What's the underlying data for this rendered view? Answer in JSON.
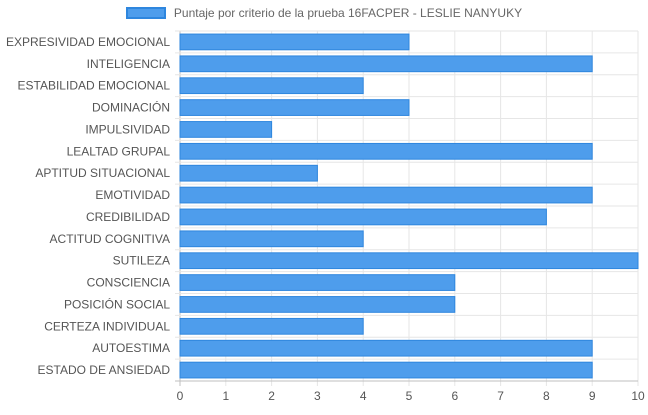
{
  "chart_data": {
    "type": "bar",
    "orientation": "horizontal",
    "title": "",
    "xlabel": "",
    "ylabel": "",
    "xlim": [
      0,
      10
    ],
    "x_ticks": [
      "0",
      "1",
      "2",
      "3",
      "4",
      "5",
      "6",
      "7",
      "8",
      "9",
      "10"
    ],
    "grid": true,
    "legend_position": "top-center",
    "categories": [
      "EXPRESIVIDAD EMOCIONAL",
      "INTELIGENCIA",
      "ESTABILIDAD EMOCIONAL",
      "DOMINACIÓN",
      "IMPULSIVIDAD",
      "LEALTAD GRUPAL",
      "APTITUD SITUACIONAL",
      "EMOTIVIDAD",
      "CREDIBILIDAD",
      "ACTITUD COGNITIVA",
      "SUTILEZA",
      "CONSCIENCIA",
      "POSICIÓN SOCIAL",
      "CERTEZA INDIVIDUAL",
      "AUTOESTIMA",
      "ESTADO DE ANSIEDAD"
    ],
    "series": [
      {
        "name": "Puntaje por criterio de la prueba 16FACPER - LESLIE NANYUKY",
        "values": [
          5,
          9,
          4,
          5,
          2,
          9,
          3,
          9,
          8,
          4,
          10,
          6,
          6,
          4,
          9,
          9
        ],
        "color": "#4e9dec",
        "border_color": "#2e86de"
      }
    ]
  }
}
